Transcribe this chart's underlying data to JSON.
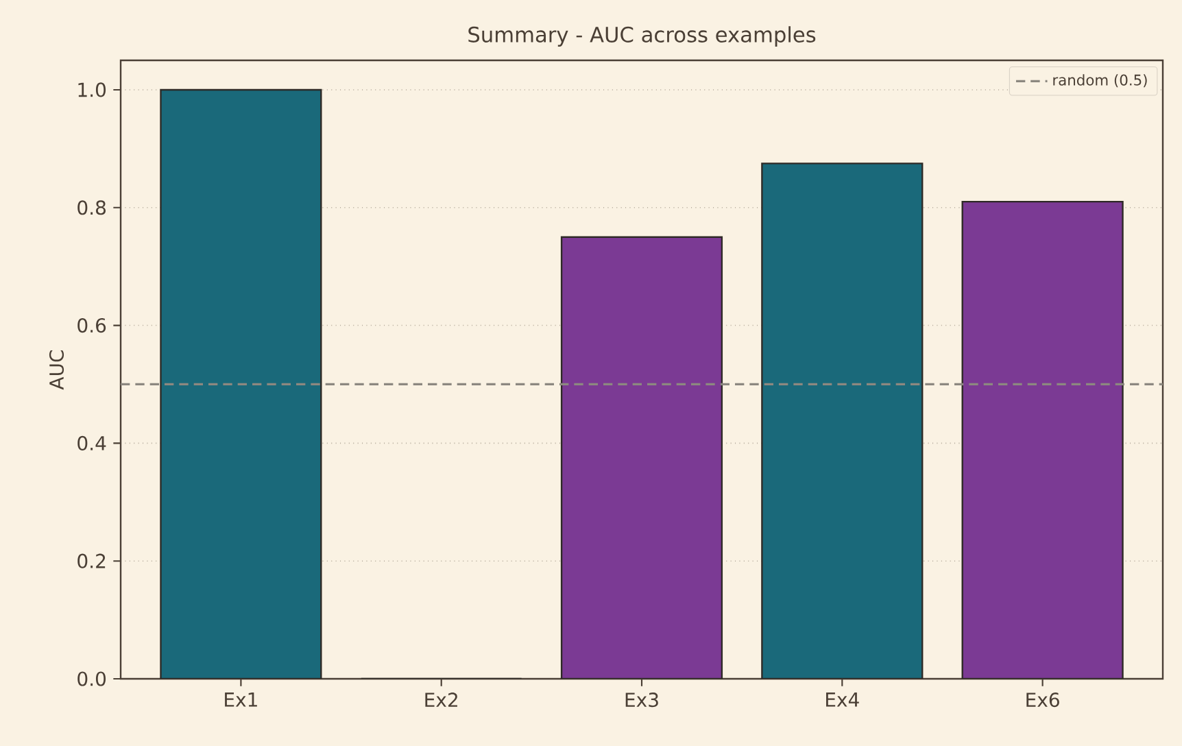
{
  "chart_data": {
    "type": "bar",
    "title": "Summary - AUC across examples",
    "ylabel": "AUC",
    "categories": [
      "Ex1",
      "Ex2",
      "Ex3",
      "Ex4",
      "Ex6"
    ],
    "values": [
      1.0,
      0.0,
      0.75,
      0.875,
      0.81
    ],
    "colors": [
      "#1a697a",
      "#1a697a",
      "#7b3a94",
      "#1a697a",
      "#7b3a94"
    ],
    "ylim": [
      0,
      1.05
    ],
    "yticks": [
      {
        "value": 0,
        "label": "0.0"
      },
      0.2,
      0.4,
      0.6,
      0.8,
      {
        "value": 1,
        "label": "1.0"
      }
    ],
    "ref_lines": [
      {
        "axis": "y",
        "value": 0.5,
        "label": "random (0.5)",
        "color": "#8c8880",
        "line_style": "dashed"
      }
    ],
    "grid": "y",
    "legend": "top right"
  }
}
